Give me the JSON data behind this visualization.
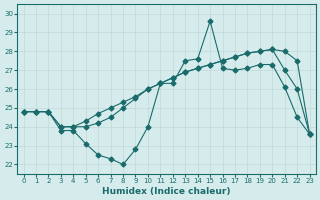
{
  "xlabel": "Humidex (Indice chaleur)",
  "ylabel": "",
  "xlim": [
    -0.5,
    23.5
  ],
  "ylim": [
    21.5,
    30.5
  ],
  "yticks": [
    22,
    23,
    24,
    25,
    26,
    27,
    28,
    29,
    30
  ],
  "xticks": [
    0,
    1,
    2,
    3,
    4,
    5,
    6,
    7,
    8,
    9,
    10,
    11,
    12,
    13,
    14,
    15,
    16,
    17,
    18,
    19,
    20,
    21,
    22,
    23
  ],
  "bg_color": "#d6ecec",
  "grid_color": "#c0d8d8",
  "line_color": "#1a6b6b",
  "line1": [
    24.8,
    24.8,
    24.8,
    23.8,
    23.8,
    23.1,
    22.5,
    22.3,
    22.0,
    22.8,
    24.0,
    26.3,
    26.3,
    27.5,
    27.6,
    29.6,
    27.1,
    27.0,
    27.1,
    27.3,
    27.3,
    26.1,
    24.5,
    23.6
  ],
  "line2": [
    24.8,
    24.8,
    24.8,
    24.0,
    24.0,
    24.0,
    24.2,
    24.5,
    25.0,
    25.5,
    26.0,
    26.3,
    26.6,
    26.9,
    27.1,
    27.3,
    27.5,
    27.7,
    27.9,
    28.0,
    28.1,
    28.0,
    27.5,
    23.6
  ],
  "line3": [
    24.8,
    24.8,
    24.8,
    24.0,
    24.0,
    24.3,
    24.7,
    25.0,
    25.3,
    25.6,
    26.0,
    26.3,
    26.6,
    26.9,
    27.1,
    27.3,
    27.5,
    27.7,
    27.9,
    28.0,
    28.1,
    27.0,
    26.0,
    23.6
  ]
}
